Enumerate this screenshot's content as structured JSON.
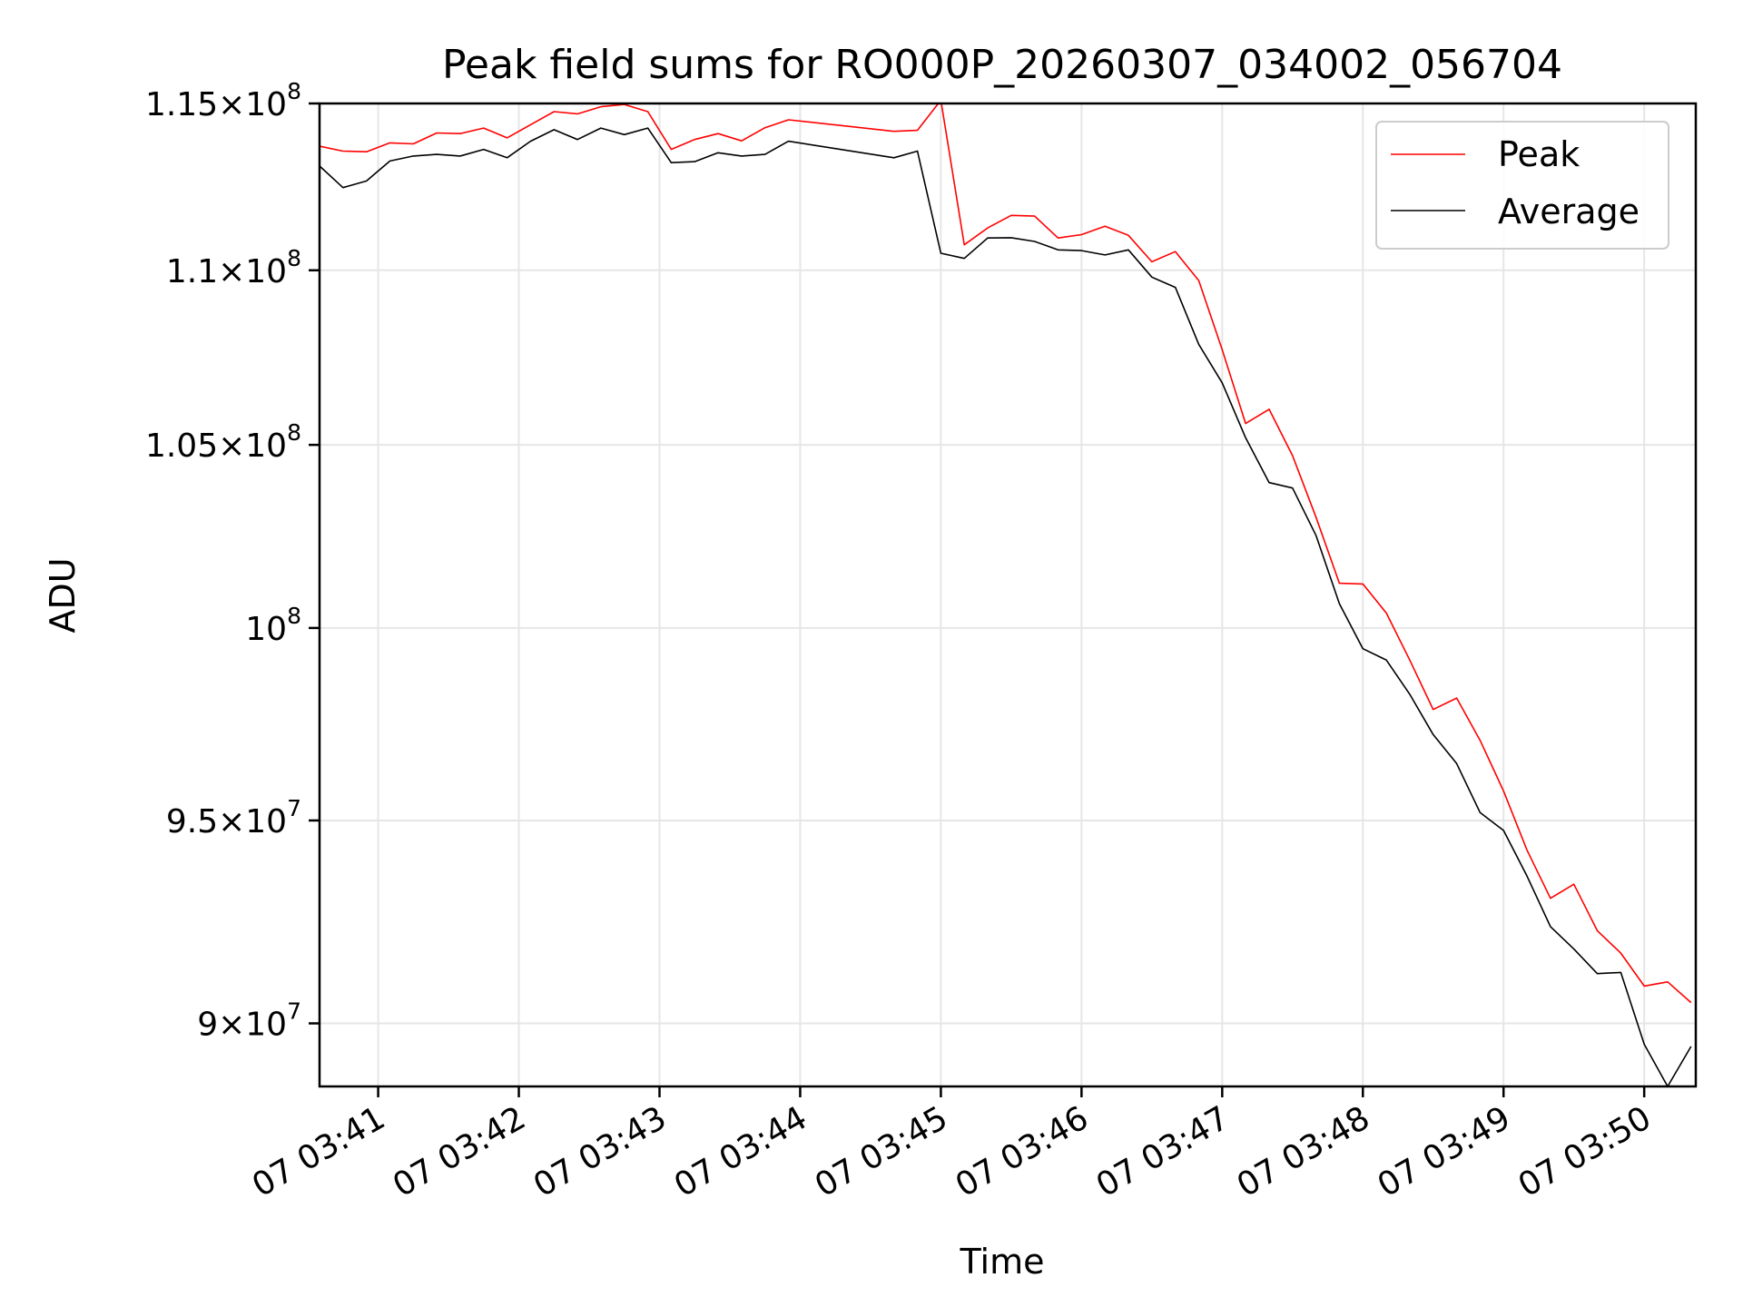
{
  "chart_data": {
    "type": "line",
    "title": "Peak field sums for RO000P_20260307_034002_056704",
    "xlabel": "Time",
    "ylabel": "ADU",
    "yscale": "log",
    "xlim": [
      "07 03:40:35",
      "07 03:50:22"
    ],
    "ylim": [
      88500000,
      115000000
    ],
    "x_ticks": [
      "07 03:41",
      "07 03:42",
      "07 03:43",
      "07 03:44",
      "07 03:45",
      "07 03:46",
      "07 03:47",
      "07 03:48",
      "07 03:49",
      "07 03:50"
    ],
    "y_ticks": [
      {
        "value": 90000000,
        "mantissa": "9",
        "exponent": "7"
      },
      {
        "value": 95000000,
        "mantissa": "9.5",
        "exponent": "7"
      },
      {
        "value": 100000000,
        "mantissa": "",
        "exponent": "8"
      },
      {
        "value": 105000000,
        "mantissa": "1.05",
        "exponent": "8"
      },
      {
        "value": 110000000,
        "mantissa": "1.1",
        "exponent": "8"
      },
      {
        "value": 115000000,
        "mantissa": "1.15",
        "exponent": "8"
      }
    ],
    "grid": true,
    "legend_position": "top-right",
    "x": [
      "07 03:40:35",
      "07 03:40:45",
      "07 03:40:55",
      "07 03:41:05",
      "07 03:41:15",
      "07 03:41:25",
      "07 03:41:35",
      "07 03:41:45",
      "07 03:41:55",
      "07 03:42:05",
      "07 03:42:15",
      "07 03:42:25",
      "07 03:42:35",
      "07 03:42:45",
      "07 03:42:55",
      "07 03:43:05",
      "07 03:43:15",
      "07 03:43:25",
      "07 03:43:35",
      "07 03:43:45",
      "07 03:43:55",
      "07 03:44:40",
      "07 03:44:50",
      "07 03:45:00",
      "07 03:45:10",
      "07 03:45:20",
      "07 03:45:30",
      "07 03:45:40",
      "07 03:45:50",
      "07 03:46:00",
      "07 03:46:10",
      "07 03:46:20",
      "07 03:46:30",
      "07 03:46:40",
      "07 03:46:50",
      "07 03:47:00",
      "07 03:47:10",
      "07 03:47:20",
      "07 03:47:30",
      "07 03:47:40",
      "07 03:47:50",
      "07 03:48:00",
      "07 03:48:10",
      "07 03:48:20",
      "07 03:48:30",
      "07 03:48:40",
      "07 03:48:50",
      "07 03:49:00",
      "07 03:49:10",
      "07 03:49:20",
      "07 03:49:30",
      "07 03:49:40",
      "07 03:49:50",
      "07 03:50:00",
      "07 03:50:10",
      "07 03:50:20"
    ],
    "series": [
      {
        "name": "Peak",
        "color": "#ff0000",
        "values": [
          113700000,
          113550000,
          113530000,
          113800000,
          113770000,
          114100000,
          114080000,
          114250000,
          113950000,
          114350000,
          114750000,
          114680000,
          114900000,
          114970000,
          114750000,
          113600000,
          113900000,
          114080000,
          113860000,
          114260000,
          114500000,
          114150000,
          114180000,
          115100000,
          110750000,
          111250000,
          111620000,
          111600000,
          110950000,
          111050000,
          111300000,
          111030000,
          110250000,
          110550000,
          109700000,
          107700000,
          105600000,
          106000000,
          104700000,
          103000000,
          101200000,
          101180000,
          100400000,
          99150000,
          97850000,
          98150000,
          97050000,
          95750000,
          94250000,
          93050000,
          93400000,
          92250000,
          91700000,
          90900000,
          91000000,
          90500000
        ]
      },
      {
        "name": "Average",
        "color": "#000000",
        "values": [
          113100000,
          112450000,
          112650000,
          113250000,
          113400000,
          113450000,
          113400000,
          113600000,
          113350000,
          113850000,
          114200000,
          113900000,
          114250000,
          114050000,
          114250000,
          113200000,
          113230000,
          113500000,
          113400000,
          113450000,
          113850000,
          113350000,
          113550000,
          110500000,
          110350000,
          110950000,
          110960000,
          110850000,
          110600000,
          110580000,
          110450000,
          110600000,
          109800000,
          109500000,
          107850000,
          106750000,
          105200000,
          103950000,
          103800000,
          102500000,
          100650000,
          99450000,
          99150000,
          98250000,
          97200000,
          96450000,
          95200000,
          94750000,
          93600000,
          92350000,
          91800000,
          91200000,
          91230000,
          89500000,
          88500000,
          89450000
        ]
      }
    ]
  }
}
